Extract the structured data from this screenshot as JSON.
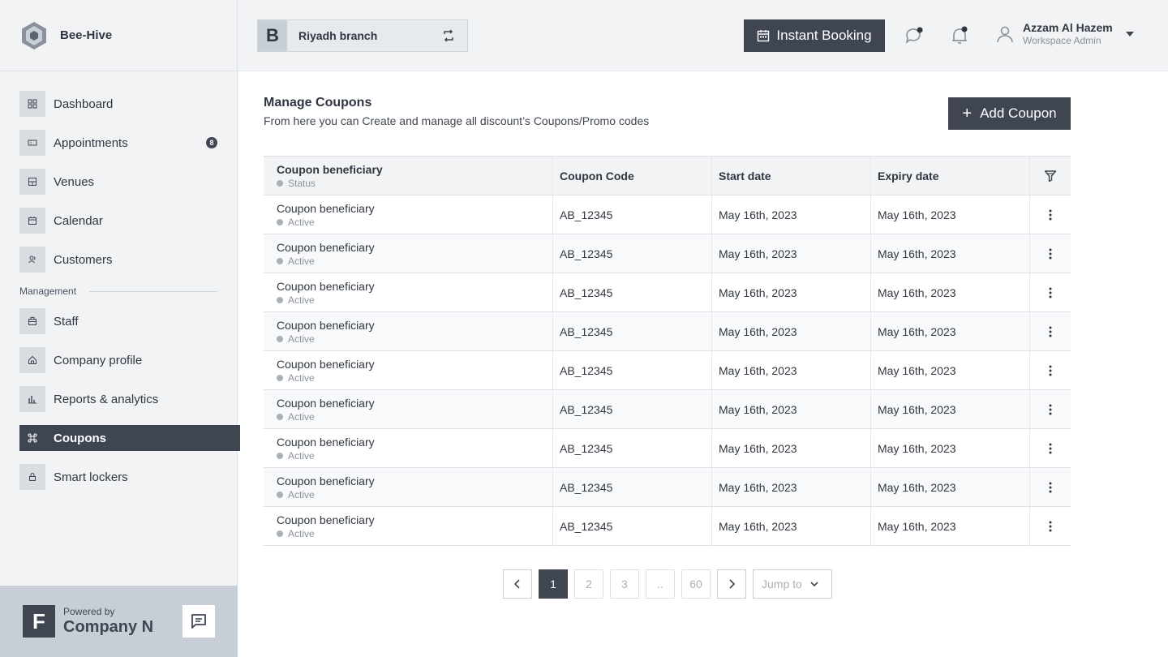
{
  "brand": {
    "name": "Bee-Hive"
  },
  "sidebar": {
    "items": [
      {
        "label": "Dashboard",
        "icon": "grid-icon"
      },
      {
        "label": "Appointments",
        "icon": "ticket-icon",
        "badge": "8"
      },
      {
        "label": "Venues",
        "icon": "building-icon"
      },
      {
        "label": "Calendar",
        "icon": "calendar-icon"
      },
      {
        "label": "Customers",
        "icon": "users-icon"
      }
    ],
    "section_title": "Management",
    "management_items": [
      {
        "label": "Staff",
        "icon": "briefcase-icon"
      },
      {
        "label": "Company profile",
        "icon": "home-icon"
      },
      {
        "label": "Reports & analytics",
        "icon": "bar-chart-icon"
      },
      {
        "label": "Coupons",
        "icon": "command-icon",
        "active": true
      },
      {
        "label": "Smart lockers",
        "icon": "lock-icon"
      }
    ],
    "footer": {
      "logo_letter": "F",
      "powered_by": "Powered by",
      "company": "Company N"
    }
  },
  "header": {
    "branch_letter": "B",
    "branch_name": "Riyadh branch",
    "instant_booking": "Instant Booking",
    "user_name": "Azzam Al Hazem",
    "user_role": "Workspace Admin"
  },
  "main": {
    "title": "Manage Coupons",
    "subtitle": "From here you can Create and manage all discount’s Coupons/Promo codes",
    "add_button": "Add Coupon"
  },
  "table": {
    "columns": {
      "beneficiary": "Coupon beneficiary",
      "status": "Status",
      "code": "Coupon Code",
      "start": "Start date",
      "expiry": "Expiry date"
    },
    "rows": [
      {
        "beneficiary": "Coupon beneficiary",
        "status": "Active",
        "code": "AB_12345",
        "start": "May 16th, 2023",
        "expiry": "May 16th, 2023"
      },
      {
        "beneficiary": "Coupon beneficiary",
        "status": "Active",
        "code": "AB_12345",
        "start": "May 16th, 2023",
        "expiry": "May 16th, 2023"
      },
      {
        "beneficiary": "Coupon beneficiary",
        "status": "Active",
        "code": "AB_12345",
        "start": "May 16th, 2023",
        "expiry": "May 16th, 2023"
      },
      {
        "beneficiary": "Coupon beneficiary",
        "status": "Active",
        "code": "AB_12345",
        "start": "May 16th, 2023",
        "expiry": "May 16th, 2023"
      },
      {
        "beneficiary": "Coupon beneficiary",
        "status": "Active",
        "code": "AB_12345",
        "start": "May 16th, 2023",
        "expiry": "May 16th, 2023"
      },
      {
        "beneficiary": "Coupon beneficiary",
        "status": "Active",
        "code": "AB_12345",
        "start": "May 16th, 2023",
        "expiry": "May 16th, 2023"
      },
      {
        "beneficiary": "Coupon beneficiary",
        "status": "Active",
        "code": "AB_12345",
        "start": "May 16th, 2023",
        "expiry": "May 16th, 2023"
      },
      {
        "beneficiary": "Coupon beneficiary",
        "status": "Active",
        "code": "AB_12345",
        "start": "May 16th, 2023",
        "expiry": "May 16th, 2023"
      },
      {
        "beneficiary": "Coupon beneficiary",
        "status": "Active",
        "code": "AB_12345",
        "start": "May 16th, 2023",
        "expiry": "May 16th, 2023"
      }
    ]
  },
  "pagination": {
    "pages": [
      "1",
      "2",
      "3",
      "..",
      "60"
    ],
    "current": "1",
    "jump_to": "Jump to"
  },
  "colors": {
    "primary": "#3f4652",
    "sidebar_bg": "#f1f3f5",
    "footer_bg": "#c8ced6"
  }
}
